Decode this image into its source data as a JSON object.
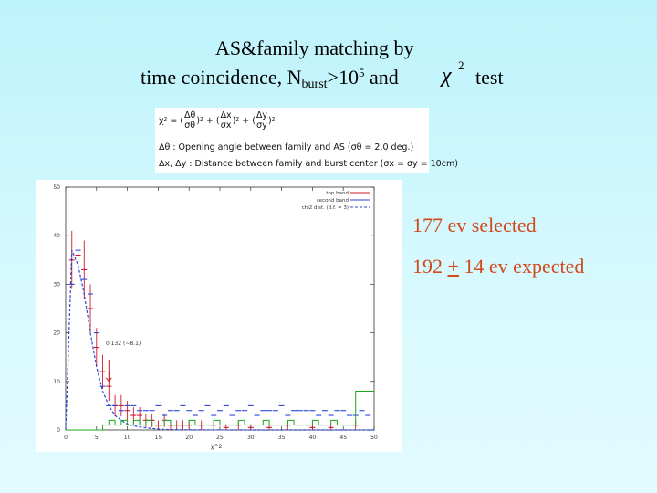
{
  "title": {
    "line1": "AS&family matching by",
    "line2_prefix": "time coincidence,  N",
    "line2_sub": "burst",
    "line2_gt": ">10",
    "line2_exp": "5",
    "line2_and": " and",
    "chi_symbol": "χ",
    "chi_exp": "2",
    "chi_test": "test"
  },
  "formula": {
    "chi_lhs": "χ² =",
    "term1_num": "Δθ",
    "term1_den": "σθ",
    "term2_num": "Δx",
    "term2_den": "σx",
    "term3_num": "Δy",
    "term3_den": "σy",
    "line2": "Δθ : Opening angle between family and AS (σθ = 2.0 deg.)",
    "line3": "Δx, Δy : Distance between family and burst center (σx = σy = 10cm)"
  },
  "stats": {
    "selected": "177 ev selected",
    "expected_prefix": "192 ",
    "expected_pm": "+",
    "expected_suffix": " 14 ev expected"
  },
  "colors": {
    "top_band": "#d0182a",
    "second_band": "#2a46d6",
    "fit_line": "#2a46d6",
    "green_hist": "#1aa81a",
    "stat_text": "#d2491b"
  },
  "chart_data": {
    "type": "line",
    "xlabel": "χ^2",
    "ylabel": "",
    "xlim": [
      0,
      50
    ],
    "ylim": [
      0,
      50
    ],
    "x_ticks": [
      "0",
      "5",
      "10",
      "15",
      "20",
      "25",
      "30",
      "35",
      "40",
      "45",
      "50"
    ],
    "y_ticks": [
      "0",
      "10",
      "20",
      "30",
      "40",
      "50"
    ],
    "annotation": "0.132 (~8.1)",
    "legend": [
      "top band",
      "second band",
      "chi2 dist. (d.f. = 3)"
    ],
    "legend_position": "top-right",
    "series": [
      {
        "name": "top band",
        "kind": "points",
        "x": [
          1,
          2,
          3,
          4,
          5,
          6,
          7,
          8,
          9,
          10,
          11,
          12,
          13,
          14,
          15,
          16,
          17,
          18,
          19,
          20,
          22,
          24,
          26,
          28,
          30,
          33,
          36,
          40,
          43,
          47
        ],
        "y": [
          35,
          36,
          33,
          25,
          17,
          12,
          9,
          5,
          5,
          4,
          3,
          3,
          2,
          2,
          1,
          2,
          1,
          1,
          1,
          1,
          1,
          1,
          0.5,
          1,
          0.5,
          0.5,
          1,
          0.5,
          0.5,
          1
        ],
        "yerr": [
          6,
          6,
          6,
          5,
          4,
          3.5,
          3,
          2.2,
          2.2,
          2,
          1.7,
          1.7,
          1.4,
          1.4,
          1,
          1.4,
          1,
          1,
          1,
          1,
          1,
          1,
          0.7,
          1,
          0.7,
          0.7,
          1,
          0.7,
          0.7,
          1
        ]
      },
      {
        "name": "second band",
        "kind": "points",
        "x": [
          1,
          2,
          3,
          4,
          5,
          6,
          7,
          8,
          9,
          10,
          11,
          12,
          13,
          14,
          15,
          16,
          17,
          18,
          19,
          20,
          21,
          22,
          23,
          24,
          25,
          26,
          27,
          28,
          29,
          30,
          31,
          32,
          33,
          34,
          35,
          36,
          37,
          38,
          39,
          40,
          41,
          42,
          43,
          44,
          45,
          46,
          47,
          48,
          49
        ],
        "y": [
          30,
          37,
          31,
          28,
          20,
          9,
          5,
          5,
          4,
          5,
          5,
          4,
          4,
          4,
          5,
          3,
          4,
          4,
          5,
          4,
          3,
          4,
          5,
          3,
          4,
          5,
          3,
          4,
          4,
          5,
          3,
          4,
          4,
          4,
          5,
          3,
          4,
          4,
          4,
          4,
          3,
          4,
          3,
          4,
          4,
          3,
          3,
          4,
          3
        ]
      },
      {
        "name": "chi2 dist. (d.f. = 3)",
        "kind": "curve",
        "x": [
          0,
          1,
          2,
          3,
          4,
          5,
          6,
          7,
          8,
          9,
          10,
          12,
          14,
          16,
          20,
          25,
          30,
          40,
          50
        ],
        "y": [
          0,
          37,
          34,
          28,
          20,
          13,
          8,
          5,
          3,
          2,
          1.2,
          0.6,
          0.3,
          0.1,
          0.03,
          0.01,
          0,
          0,
          0
        ]
      },
      {
        "name": "green histogram",
        "kind": "step",
        "x": [
          0,
          1,
          2,
          3,
          4,
          5,
          6,
          7,
          8,
          9,
          10,
          11,
          12,
          13,
          14,
          15,
          16,
          17,
          18,
          19,
          20,
          21,
          22,
          23,
          24,
          25,
          26,
          27,
          28,
          29,
          30,
          31,
          32,
          33,
          34,
          35,
          36,
          37,
          38,
          39,
          40,
          41,
          42,
          43,
          44,
          45,
          46,
          47,
          48,
          49,
          50
        ],
        "y": [
          0,
          0,
          0,
          0,
          0,
          0,
          1,
          2,
          1,
          2,
          1,
          2,
          1,
          2,
          1,
          1,
          2,
          1,
          1,
          1,
          2,
          1,
          1,
          1,
          2,
          1,
          1,
          1,
          2,
          1,
          1,
          1,
          2,
          1,
          1,
          1,
          2,
          1,
          1,
          1,
          2,
          1,
          1,
          2,
          1,
          1,
          1,
          8,
          8,
          8,
          8
        ]
      }
    ]
  }
}
